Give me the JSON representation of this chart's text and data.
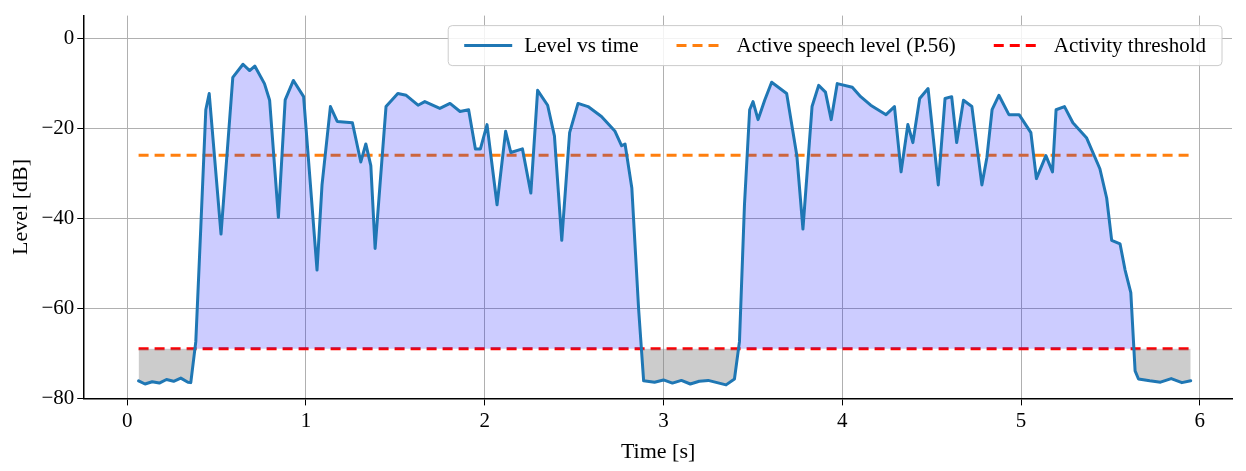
{
  "chart_data": {
    "type": "area",
    "xlabel": "Time [s]",
    "ylabel": "Level [dB]",
    "xlim": [
      -0.24,
      6.18
    ],
    "ylim": [
      -80,
      5
    ],
    "xticks": [
      0,
      1,
      2,
      3,
      4,
      5,
      6
    ],
    "yticks": [
      {
        "value": -80,
        "label": "−80"
      },
      {
        "value": -60,
        "label": "−60"
      },
      {
        "value": -40,
        "label": "−40"
      },
      {
        "value": -20,
        "label": "−20"
      },
      0
    ],
    "grid": true,
    "legend": "top right",
    "marker": "none",
    "line_style": "solid",
    "series": [
      {
        "name": "Level vs time",
        "color": "#1f77b4",
        "x": [
          0.064,
          0.1,
          0.14,
          0.18,
          0.22,
          0.26,
          0.3,
          0.34,
          0.356,
          0.384,
          0.412,
          0.44,
          0.459,
          0.525,
          0.591,
          0.648,
          0.685,
          0.714,
          0.768,
          0.797,
          0.846,
          0.884,
          0.93,
          0.987,
          1.062,
          1.09,
          1.137,
          1.175,
          1.26,
          1.307,
          1.335,
          1.363,
          1.387,
          1.448,
          1.514,
          1.561,
          1.627,
          1.665,
          1.749,
          1.806,
          1.862,
          1.91,
          1.948,
          1.976,
          2.013,
          2.069,
          2.117,
          2.146,
          2.211,
          2.258,
          2.296,
          2.352,
          2.39,
          2.431,
          2.475,
          2.522,
          2.578,
          2.653,
          2.729,
          2.766,
          2.785,
          2.823,
          2.861,
          2.889,
          2.95,
          3.0,
          3.05,
          3.1,
          3.15,
          3.2,
          3.25,
          3.3,
          3.35,
          3.397,
          3.425,
          3.453,
          3.482,
          3.501,
          3.529,
          3.566,
          3.605,
          3.689,
          3.746,
          3.78,
          3.831,
          3.868,
          3.906,
          3.938,
          3.972,
          4.056,
          4.103,
          4.159,
          4.245,
          4.292,
          4.329,
          4.367,
          4.395,
          4.433,
          4.48,
          4.537,
          4.575,
          4.612,
          4.64,
          4.678,
          4.725,
          4.781,
          4.809,
          4.838,
          4.876,
          4.932,
          4.989,
          5.055,
          5.086,
          5.139,
          5.176,
          5.196,
          5.243,
          5.29,
          5.366,
          5.441,
          5.479,
          5.507,
          5.554,
          5.582,
          5.614,
          5.638,
          5.657,
          5.72,
          5.78,
          5.84,
          5.9,
          5.949
        ],
        "values": [
          -76.1,
          -76.8,
          -76.3,
          -76.6,
          -75.8,
          -76.2,
          -75.5,
          -76.4,
          -76.5,
          -67.4,
          -42,
          -15.9,
          -12.3,
          -43.5,
          -8.7,
          -5.8,
          -7.2,
          -6.2,
          -10.1,
          -13.8,
          -39.8,
          -13.7,
          -9.4,
          -13,
          -51.5,
          -32.6,
          -15.2,
          -18.5,
          -18.8,
          -27.5,
          -23.5,
          -28.3,
          -46.7,
          -15.2,
          -12.3,
          -12.7,
          -14.9,
          -14.1,
          -15.6,
          -14.5,
          -16.3,
          -15.9,
          -24.6,
          -24.6,
          -19.2,
          -37,
          -20.7,
          -25.4,
          -24.6,
          -34.4,
          -11.6,
          -14.9,
          -21.7,
          -44.9,
          -21,
          -14.5,
          -15.2,
          -17.4,
          -20.7,
          -23.9,
          -23.5,
          -33.3,
          -60.2,
          -76.1,
          -76.4,
          -75.9,
          -76.6,
          -76,
          -76.8,
          -76.2,
          -76,
          -76.5,
          -77,
          -75.7,
          -67.4,
          -37,
          -15.9,
          -14.1,
          -18.1,
          -13.8,
          -9.8,
          -12.3,
          -26.1,
          -42.4,
          -15.2,
          -10.5,
          -12,
          -18.1,
          -10.1,
          -10.9,
          -13,
          -14.9,
          -17,
          -15.2,
          -29.7,
          -19.2,
          -23.2,
          -13.4,
          -11.2,
          -32.6,
          -13.4,
          -13,
          -23.2,
          -13.8,
          -15.2,
          -32.6,
          -26.5,
          -15.9,
          -12.7,
          -17,
          -17,
          -21,
          -31.2,
          -26.1,
          -29.7,
          -15.9,
          -15.2,
          -18.8,
          -22.1,
          -29,
          -35.5,
          -44.9,
          -45.7,
          -51.5,
          -56.5,
          -73.9,
          -75.7,
          -76.1,
          -76.4,
          -75.6,
          -76.5,
          -76.1
        ]
      }
    ],
    "ref_lines": [
      {
        "axis": "y",
        "value": -26,
        "label": "Active speech level (P.56)",
        "color": "#ff7f0e",
        "line_style": "dashed"
      },
      {
        "axis": "y",
        "value": -69,
        "label": "Activity threshold",
        "color": "#ff0000",
        "line_style": "dashed"
      }
    ]
  }
}
